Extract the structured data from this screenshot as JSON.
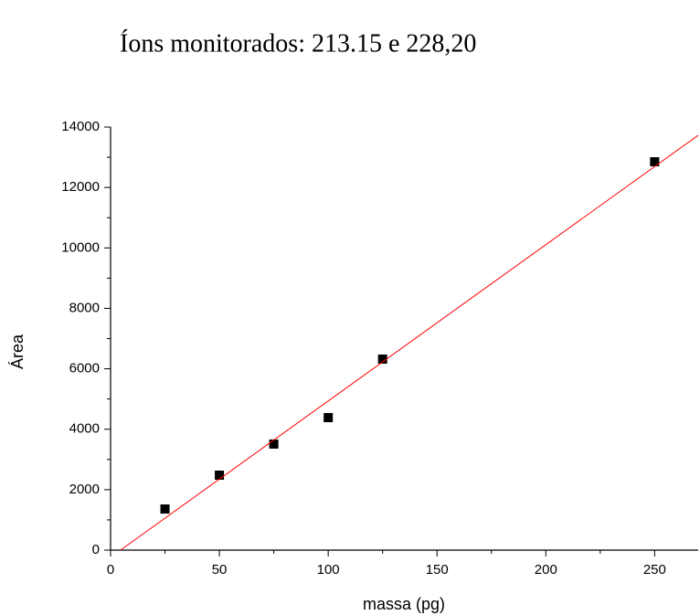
{
  "chart_data": {
    "type": "scatter",
    "title": "Íons monitorados: 213.15 e 228,20",
    "x_label": "massa (pg)",
    "y_label": "Área",
    "xlim": [
      0,
      270
    ],
    "xticks": [
      0,
      50,
      100,
      150,
      200,
      250
    ],
    "xminorticks": [
      25,
      75,
      125,
      175,
      225
    ],
    "ylim": [
      0,
      14000
    ],
    "yticks": [
      0,
      2000,
      4000,
      6000,
      8000,
      10000,
      12000,
      14000
    ],
    "yminorticks": [
      1000,
      3000,
      5000,
      7000,
      9000,
      11000,
      13000
    ],
    "series": [
      {
        "type": "scatter",
        "color": "#000000",
        "x": [
          25,
          50,
          75,
          100,
          125,
          250
        ],
        "values": [
          1360,
          2480,
          3510,
          4385,
          6320,
          12850
        ]
      },
      {
        "type": "line",
        "color": "#ff0000",
        "x": [
          4.56,
          270
        ],
        "values": [
          0,
          13726
        ]
      }
    ]
  }
}
